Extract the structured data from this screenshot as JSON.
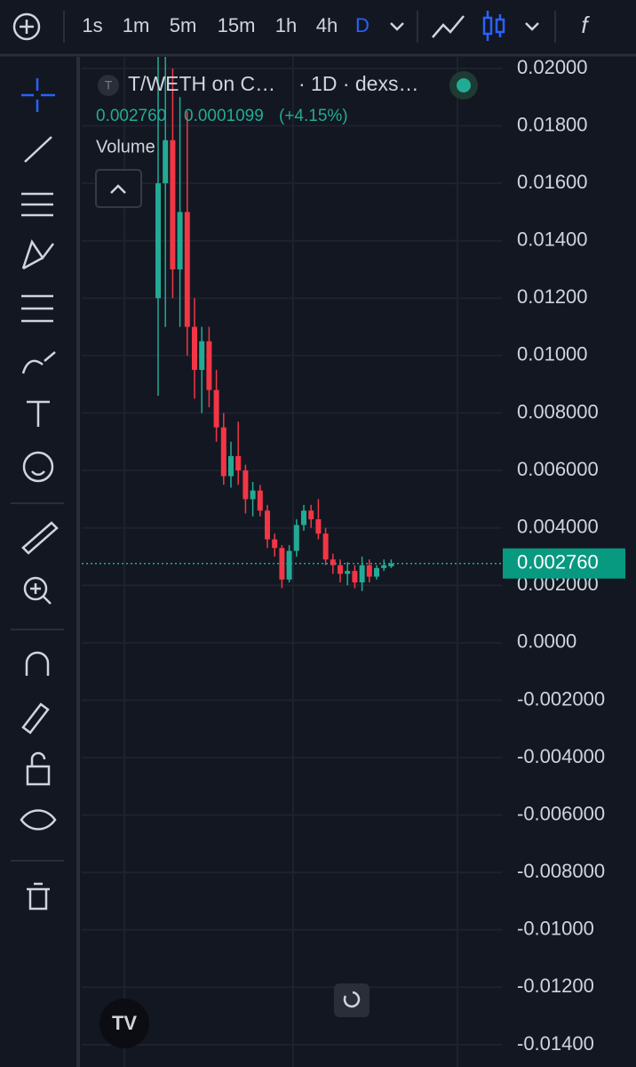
{
  "toolbar": {
    "intervals": [
      "1s",
      "1m",
      "5m",
      "15m",
      "1h",
      "4h",
      "D"
    ]
  },
  "legend": {
    "symbol_icon": "T",
    "symbol": "T/WETH on C…",
    "meta": "· 1D · dexs…",
    "price": "0.002760",
    "change": "0.0001099",
    "change_pct": "(+4.15%)",
    "volume": "Volume"
  },
  "chart_data": {
    "type": "candlestick",
    "up_color": "#22ab94",
    "down_color": "#f23645",
    "categories": [
      null,
      null,
      null,
      null,
      null,
      null,
      null,
      null,
      null,
      null,
      null,
      null,
      null,
      null,
      null,
      null,
      null,
      null,
      null,
      null,
      null,
      null,
      null,
      null,
      null,
      null,
      null,
      null,
      null,
      null,
      null,
      null,
      null
    ],
    "open": [
      0.012,
      0.016,
      0.0175,
      0.013,
      0.015,
      0.011,
      0.0095,
      0.0105,
      0.0088,
      0.0075,
      0.0058,
      0.0065,
      0.006,
      0.005,
      0.0053,
      0.0046,
      0.0036,
      0.0033,
      0.0022,
      0.0032,
      0.0041,
      0.0046,
      0.0043,
      0.0038,
      0.0029,
      0.0027,
      0.0024,
      0.0025,
      0.0021,
      0.0027,
      0.0023,
      0.0026,
      0.00266
    ],
    "high": [
      0.0204,
      0.0204,
      0.02,
      0.019,
      0.0185,
      0.012,
      0.011,
      0.011,
      0.0095,
      0.008,
      0.007,
      0.0077,
      0.0062,
      0.0056,
      0.0055,
      0.0048,
      0.0038,
      0.0034,
      0.0034,
      0.0043,
      0.0048,
      0.0048,
      0.005,
      0.004,
      0.0031,
      0.0029,
      0.0028,
      0.0027,
      0.003,
      0.0029,
      0.0027,
      0.0029,
      0.0029
    ],
    "low": [
      0.0086,
      0.011,
      0.012,
      0.011,
      0.01,
      0.0085,
      0.008,
      0.0082,
      0.007,
      0.0055,
      0.0054,
      0.0055,
      0.0045,
      0.0044,
      0.0044,
      0.0033,
      0.003,
      0.0019,
      0.0021,
      0.003,
      0.0039,
      0.004,
      0.0036,
      0.0027,
      0.0024,
      0.0021,
      0.002,
      0.0019,
      0.0018,
      0.0021,
      0.0022,
      0.0025,
      0.0026
    ],
    "close": [
      0.016,
      0.0175,
      0.013,
      0.015,
      0.011,
      0.0095,
      0.0105,
      0.0088,
      0.0075,
      0.0058,
      0.0065,
      0.006,
      0.005,
      0.0053,
      0.0046,
      0.0036,
      0.0033,
      0.0022,
      0.0032,
      0.0041,
      0.0046,
      0.0043,
      0.0038,
      0.0029,
      0.0027,
      0.0024,
      0.0025,
      0.0021,
      0.0027,
      0.0023,
      0.0026,
      0.0027,
      0.00276
    ],
    "ylim": [
      -0.01462,
      0.02037
    ],
    "yticks": [
      {
        "value": 0.02,
        "label": "0.02000"
      },
      {
        "value": 0.018,
        "label": "0.01800"
      },
      {
        "value": 0.016,
        "label": "0.01600"
      },
      {
        "value": 0.014,
        "label": "0.01400"
      },
      {
        "value": 0.012,
        "label": "0.01200"
      },
      {
        "value": 0.01,
        "label": "0.01000"
      },
      {
        "value": 0.008,
        "label": "0.008000"
      },
      {
        "value": 0.006,
        "label": "0.006000"
      },
      {
        "value": 0.004,
        "label": "0.004000"
      },
      {
        "value": 0.002,
        "label": "0.002000"
      },
      {
        "value": 0,
        "label": "0.0000"
      },
      {
        "value": -0.002,
        "label": "-0.002000"
      },
      {
        "value": -0.004,
        "label": "-0.004000"
      },
      {
        "value": -0.006,
        "label": "-0.006000"
      },
      {
        "value": -0.008,
        "label": "-0.008000"
      },
      {
        "value": -0.01,
        "label": "-0.01000"
      },
      {
        "value": -0.012,
        "label": "-0.01200"
      },
      {
        "value": -0.014,
        "label": "-0.01400"
      }
    ],
    "grid": true,
    "last_price": {
      "value": 0.00276,
      "label": "0.002760"
    }
  }
}
